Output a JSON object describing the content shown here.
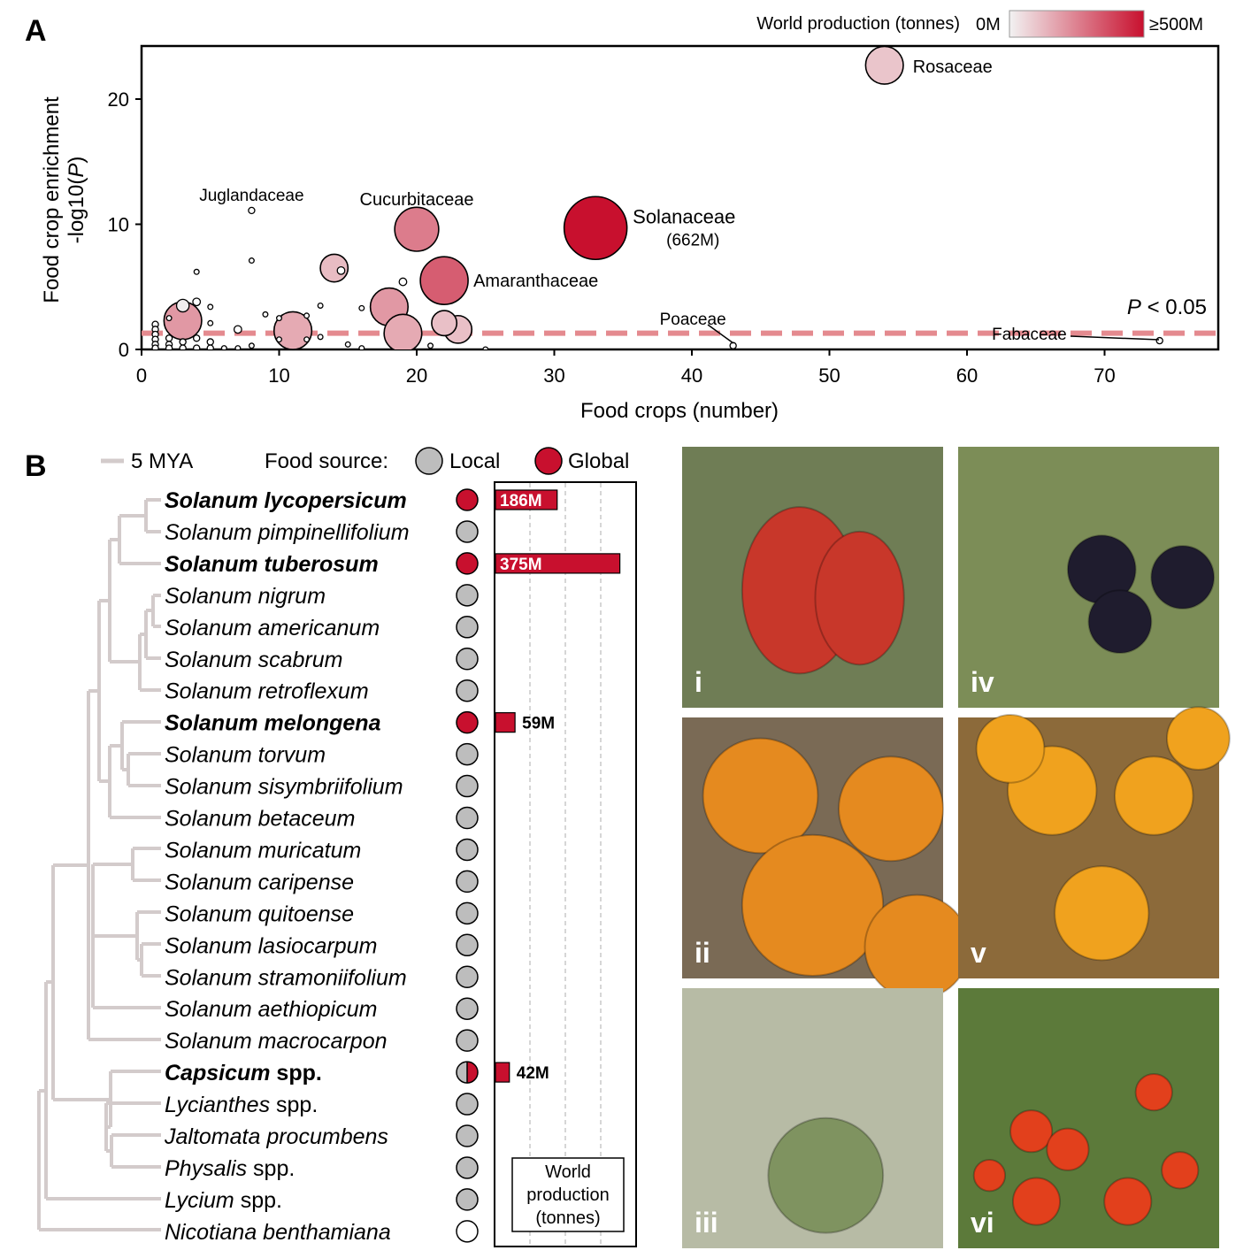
{
  "panel_a": {
    "letter": "A",
    "legend": {
      "title": "World production (tonnes)",
      "min_label": "0M",
      "max_label": "≥500M",
      "min_color": "#f2f2f2",
      "max_color": "#c8102e"
    },
    "threshold_label_italic": "P",
    "threshold_label_rest": " < 0.05",
    "xlabel": "Food crops (number)",
    "ylabel_line1": "Food crop enrichment",
    "ylabel_line2_pre": "-log10(",
    "ylabel_line2_italic": "P",
    "ylabel_line2_post": ")"
  },
  "chart_data": {
    "type": "scatter",
    "xlabel": "Food crops (number)",
    "ylabel": "Food crop enrichment -log10(P)",
    "xlim": [
      0,
      78
    ],
    "ylim": [
      0,
      24
    ],
    "xticks": [
      0,
      10,
      20,
      30,
      40,
      50,
      60,
      70
    ],
    "yticks": [
      0,
      10,
      20
    ],
    "threshold": {
      "y": 1.3,
      "label": "P < 0.05",
      "color": "#e48a8f"
    },
    "color_scale": {
      "min": 0,
      "max": 500,
      "unit": "M tonnes"
    },
    "labeled_points": [
      {
        "name": "Rosaceae",
        "x": 54,
        "y": 22.7,
        "production": 100,
        "size": 3
      },
      {
        "name": "Solanaceae",
        "x": 33,
        "y": 9.7,
        "production": 662,
        "size": 5,
        "note": "(662M)"
      },
      {
        "name": "Cucurbitaceae",
        "x": 20,
        "y": 9.6,
        "production": 260,
        "size": 3.5
      },
      {
        "name": "Amaranthaceae",
        "x": 22,
        "y": 5.5,
        "production": 330,
        "size": 3.8
      },
      {
        "name": "Juglandaceae",
        "x": 8,
        "y": 11.1,
        "production": 0,
        "size": 0.5
      },
      {
        "name": "Poaceae",
        "x": 43,
        "y": 0.3,
        "production": 0,
        "size": 0.5
      },
      {
        "name": "Fabaceae",
        "x": 74,
        "y": 0.7,
        "production": 0,
        "size": 0.5
      }
    ],
    "points": [
      {
        "x": 3,
        "y": 2.3,
        "production": 200,
        "size": 3
      },
      {
        "x": 3,
        "y": 3.5,
        "production": 10,
        "size": 1
      },
      {
        "x": 14,
        "y": 6.5,
        "production": 120,
        "size": 2.2
      },
      {
        "x": 14.5,
        "y": 6.3,
        "production": 0,
        "size": 0.6
      },
      {
        "x": 18,
        "y": 3.4,
        "production": 200,
        "size": 3
      },
      {
        "x": 19,
        "y": 1.3,
        "production": 160,
        "size": 3
      },
      {
        "x": 11,
        "y": 1.5,
        "production": 160,
        "size": 3
      },
      {
        "x": 22,
        "y": 2.1,
        "production": 110,
        "size": 2
      },
      {
        "x": 23,
        "y": 1.6,
        "production": 110,
        "size": 2.2
      },
      {
        "x": 19,
        "y": 5.4,
        "production": 0,
        "size": 0.6
      },
      {
        "x": 8,
        "y": 7.1,
        "production": 0,
        "size": 0.4
      },
      {
        "x": 4,
        "y": 6.2,
        "production": 0,
        "size": 0.4
      },
      {
        "x": 4,
        "y": 3.8,
        "production": 0,
        "size": 0.6
      },
      {
        "x": 5,
        "y": 3.4,
        "production": 0,
        "size": 0.4
      },
      {
        "x": 5,
        "y": 2.1,
        "production": 0,
        "size": 0.4
      },
      {
        "x": 7,
        "y": 1.6,
        "production": 0,
        "size": 0.6
      },
      {
        "x": 9,
        "y": 2.8,
        "production": 0,
        "size": 0.4
      },
      {
        "x": 10,
        "y": 2.5,
        "production": 0,
        "size": 0.4
      },
      {
        "x": 12,
        "y": 2.7,
        "production": 0,
        "size": 0.4
      },
      {
        "x": 13,
        "y": 3.5,
        "production": 0,
        "size": 0.4
      },
      {
        "x": 16,
        "y": 3.3,
        "production": 0,
        "size": 0.4
      },
      {
        "x": 2,
        "y": 2.5,
        "production": 0,
        "size": 0.4
      },
      {
        "x": 1,
        "y": 2.0,
        "production": 0,
        "size": 0.5
      },
      {
        "x": 1,
        "y": 1.6,
        "production": 0,
        "size": 0.5
      },
      {
        "x": 1,
        "y": 1.2,
        "production": 0,
        "size": 0.5
      },
      {
        "x": 1,
        "y": 0.8,
        "production": 0,
        "size": 0.5
      },
      {
        "x": 1,
        "y": 0.4,
        "production": 0,
        "size": 0.5
      },
      {
        "x": 1,
        "y": 0.1,
        "production": 0,
        "size": 0.5
      },
      {
        "x": 2,
        "y": 0.9,
        "production": 0,
        "size": 0.5
      },
      {
        "x": 2,
        "y": 0.4,
        "production": 0,
        "size": 0.5
      },
      {
        "x": 2,
        "y": 0.1,
        "production": 0,
        "size": 0.5
      },
      {
        "x": 3,
        "y": 0.6,
        "production": 0,
        "size": 0.5
      },
      {
        "x": 3,
        "y": 0.1,
        "production": 0,
        "size": 0.5
      },
      {
        "x": 4,
        "y": 0.9,
        "production": 0,
        "size": 0.5
      },
      {
        "x": 4,
        "y": 0.1,
        "production": 0,
        "size": 0.5
      },
      {
        "x": 5,
        "y": 0.6,
        "production": 0,
        "size": 0.5
      },
      {
        "x": 5,
        "y": 0.1,
        "production": 0,
        "size": 0.5
      },
      {
        "x": 6,
        "y": 0.1,
        "production": 0,
        "size": 0.4
      },
      {
        "x": 7,
        "y": 0.1,
        "production": 0,
        "size": 0.4
      },
      {
        "x": 8,
        "y": 0.3,
        "production": 0,
        "size": 0.4
      },
      {
        "x": 10,
        "y": 0.8,
        "production": 0,
        "size": 0.4
      },
      {
        "x": 12,
        "y": 0.8,
        "production": 0,
        "size": 0.4
      },
      {
        "x": 13,
        "y": 1.0,
        "production": 0,
        "size": 0.4
      },
      {
        "x": 15,
        "y": 0.4,
        "production": 0,
        "size": 0.4
      },
      {
        "x": 16,
        "y": 0.1,
        "production": 0,
        "size": 0.4
      },
      {
        "x": 21,
        "y": 0.3,
        "production": 0,
        "size": 0.4
      },
      {
        "x": 25,
        "y": 0.0,
        "production": 0,
        "size": 0.4
      }
    ]
  },
  "panel_b": {
    "letter": "B",
    "scale_label": "5 MYA",
    "food_source_label": "Food source:",
    "local_label": "Local",
    "global_label": "Global",
    "local_color": "#bdbdbd",
    "global_color": "#c8102e",
    "production_box_label": [
      "World",
      "production",
      "(tonnes)"
    ],
    "production_max": 400,
    "species": [
      {
        "name": "Solanum lycopersicum",
        "italic": "Solanum lycopersicum",
        "plain": "",
        "bold": true,
        "source": "global",
        "production": 186,
        "label": "186M"
      },
      {
        "name": "Solanum pimpinellifolium",
        "italic": "Solanum pimpinellifolium",
        "plain": "",
        "bold": false,
        "source": "local",
        "production": 0,
        "label": ""
      },
      {
        "name": "Solanum tuberosum",
        "italic": "Solanum tuberosum",
        "plain": "",
        "bold": true,
        "source": "global",
        "production": 375,
        "label": "375M"
      },
      {
        "name": "Solanum nigrum",
        "italic": "Solanum nigrum",
        "plain": "",
        "bold": false,
        "source": "local",
        "production": 0,
        "label": ""
      },
      {
        "name": "Solanum americanum",
        "italic": "Solanum americanum",
        "plain": "",
        "bold": false,
        "source": "local",
        "production": 0,
        "label": ""
      },
      {
        "name": "Solanum scabrum",
        "italic": "Solanum scabrum",
        "plain": "",
        "bold": false,
        "source": "local",
        "production": 0,
        "label": ""
      },
      {
        "name": "Solanum retroflexum",
        "italic": "Solanum retroflexum",
        "plain": "",
        "bold": false,
        "source": "local",
        "production": 0,
        "label": ""
      },
      {
        "name": "Solanum melongena",
        "italic": "Solanum melongena",
        "plain": "",
        "bold": true,
        "source": "global",
        "production": 59,
        "label": "59M"
      },
      {
        "name": "Solanum torvum",
        "italic": "Solanum torvum",
        "plain": "",
        "bold": false,
        "source": "local",
        "production": 0,
        "label": ""
      },
      {
        "name": "Solanum sisymbriifolium",
        "italic": "Solanum sisymbriifolium",
        "plain": "",
        "bold": false,
        "source": "local",
        "production": 0,
        "label": ""
      },
      {
        "name": "Solanum betaceum",
        "italic": "Solanum betaceum",
        "plain": "",
        "bold": false,
        "source": "local",
        "production": 0,
        "label": ""
      },
      {
        "name": "Solanum muricatum",
        "italic": "Solanum muricatum",
        "plain": "",
        "bold": false,
        "source": "local",
        "production": 0,
        "label": ""
      },
      {
        "name": "Solanum caripense",
        "italic": "Solanum caripense",
        "plain": "",
        "bold": false,
        "source": "local",
        "production": 0,
        "label": ""
      },
      {
        "name": "Solanum quitoense",
        "italic": "Solanum quitoense",
        "plain": "",
        "bold": false,
        "source": "local",
        "production": 0,
        "label": ""
      },
      {
        "name": "Solanum lasiocarpum",
        "italic": "Solanum lasiocarpum",
        "plain": "",
        "bold": false,
        "source": "local",
        "production": 0,
        "label": ""
      },
      {
        "name": "Solanum stramoniifolium",
        "italic": "Solanum stramoniifolium",
        "plain": "",
        "bold": false,
        "source": "local",
        "production": 0,
        "label": ""
      },
      {
        "name": "Solanum aethiopicum",
        "italic": "Solanum aethiopicum",
        "plain": "",
        "bold": false,
        "source": "local",
        "production": 0,
        "label": ""
      },
      {
        "name": "Solanum macrocarpon",
        "italic": "Solanum macrocarpon",
        "plain": "",
        "bold": false,
        "source": "local",
        "production": 0,
        "label": ""
      },
      {
        "name": "Capsicum spp.",
        "italic": "Capsicum",
        "plain": " spp.",
        "bold": true,
        "source": "mixed",
        "production": 42,
        "label": "42M"
      },
      {
        "name": "Lycianthes spp.",
        "italic": "Lycianthes",
        "plain": " spp.",
        "bold": false,
        "source": "local",
        "production": 0,
        "label": ""
      },
      {
        "name": "Jaltomata procumbens",
        "italic": "Jaltomata procumbens",
        "plain": "",
        "bold": false,
        "source": "local",
        "production": 0,
        "label": ""
      },
      {
        "name": "Physalis spp.",
        "italic": "Physalis",
        "plain": " spp.",
        "bold": false,
        "source": "local",
        "production": 0,
        "label": ""
      },
      {
        "name": "Lycium spp.",
        "italic": "Lycium",
        "plain": " spp.",
        "bold": false,
        "source": "local",
        "production": 0,
        "label": ""
      },
      {
        "name": "Nicotiana benthamiana",
        "italic": "Nicotiana benthamiana",
        "plain": "",
        "bold": false,
        "source": "none",
        "production": 0,
        "label": ""
      }
    ]
  },
  "photos": [
    {
      "label": "i",
      "fruit": "#c8372a",
      "bg": "#6f7d55"
    },
    {
      "label": "iv",
      "fruit": "#1f1c2e",
      "bg": "#7c8d57"
    },
    {
      "label": "ii",
      "fruit": "#e58a1f",
      "bg": "#7a6a55"
    },
    {
      "label": "v",
      "fruit": "#f0a21e",
      "bg": "#8c6a3a"
    },
    {
      "label": "iii",
      "fruit": "#7f9360",
      "bg": "#b7bba5"
    },
    {
      "label": "vi",
      "fruit": "#e2401c",
      "bg": "#5c7a3a"
    }
  ]
}
